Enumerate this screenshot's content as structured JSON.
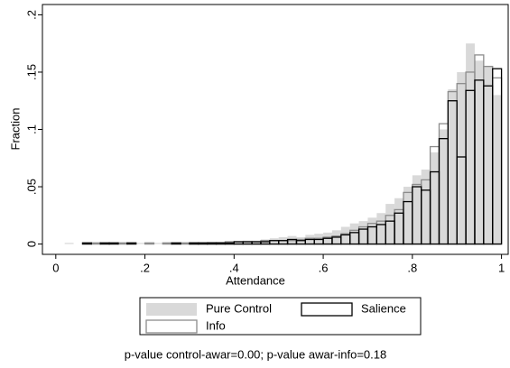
{
  "chart_data": {
    "type": "histogram",
    "x_label": "Attendance",
    "y_label": "Fraction",
    "note": "p-value control-awar=0.00; p-value awar-info=0.18",
    "bins": [
      0,
      0.02,
      0.04,
      0.06,
      0.08,
      0.1,
      0.12,
      0.14,
      0.16,
      0.18,
      0.2,
      0.22,
      0.24,
      0.26,
      0.28,
      0.3,
      0.32,
      0.34,
      0.36,
      0.38,
      0.4,
      0.42,
      0.44,
      0.46,
      0.48,
      0.5,
      0.52,
      0.54,
      0.56,
      0.58,
      0.6,
      0.62,
      0.64,
      0.66,
      0.68,
      0.7,
      0.72,
      0.74,
      0.76,
      0.78,
      0.8,
      0.82,
      0.84,
      0.86,
      0.88,
      0.9,
      0.92,
      0.94,
      0.96,
      0.98,
      1
    ],
    "series": [
      {
        "name": "Pure Control",
        "color": "#d9d9d9",
        "style": "filled",
        "values": [
          0,
          0.001,
          0,
          0.001,
          0.001,
          0,
          0.001,
          0.001,
          0,
          0.001,
          0.001,
          0.001,
          0,
          0.001,
          0.001,
          0.001,
          0.001,
          0.002,
          0.002,
          0.002,
          0.002,
          0.003,
          0.003,
          0.004,
          0.005,
          0.006,
          0.007,
          0.006,
          0.008,
          0.009,
          0.01,
          0.012,
          0.015,
          0.018,
          0.02,
          0.023,
          0.027,
          0.035,
          0.04,
          0.05,
          0.06,
          0.065,
          0.08,
          0.1,
          0.135,
          0.15,
          0.175,
          0.16,
          0.155,
          0.13
        ]
      },
      {
        "name": "Info",
        "color": "#8c8c8c",
        "style": "outline",
        "values": [
          0,
          0,
          0,
          0,
          0.001,
          0,
          0,
          0.001,
          0,
          0,
          0.001,
          0,
          0.001,
          0,
          0.001,
          0.001,
          0.001,
          0.001,
          0.001,
          0.002,
          0.002,
          0.002,
          0.002,
          0.003,
          0.003,
          0.003,
          0.003,
          0.004,
          0.005,
          0.005,
          0.006,
          0.007,
          0.009,
          0.012,
          0.015,
          0.018,
          0.02,
          0.025,
          0.03,
          0.045,
          0.052,
          0.056,
          0.085,
          0.105,
          0.133,
          0.14,
          0.15,
          0.165,
          0.155,
          0.145
        ]
      },
      {
        "name": "Salience",
        "color": "#000000",
        "style": "outline",
        "values": [
          0,
          0,
          0,
          0.001,
          0,
          0.001,
          0.001,
          0,
          0.001,
          0,
          0,
          0,
          0,
          0.001,
          0,
          0.001,
          0.001,
          0.001,
          0.001,
          0.001,
          0.002,
          0.002,
          0.002,
          0.002,
          0.003,
          0.003,
          0.004,
          0.003,
          0.004,
          0.004,
          0.005,
          0.006,
          0.008,
          0.01,
          0.013,
          0.015,
          0.017,
          0.02,
          0.027,
          0.037,
          0.05,
          0.047,
          0.063,
          0.092,
          0.125,
          0.076,
          0.134,
          0.143,
          0.138,
          0.153
        ]
      }
    ],
    "xlim": [
      -0.03,
      1.015
    ],
    "ylim": [
      -0.009,
      0.209
    ],
    "xticks": [
      0,
      {
        "value": 0.2,
        "label": ".2"
      },
      {
        "value": 0.4,
        "label": ".4"
      },
      {
        "value": 0.6,
        "label": ".6"
      },
      {
        "value": 0.8,
        "label": ".8"
      },
      1
    ],
    "yticks": [
      0,
      {
        "value": 0.05,
        "label": ".05"
      },
      {
        "value": 0.1,
        "label": ".1"
      },
      {
        "value": 0.15,
        "label": ".15"
      },
      {
        "value": 0.2,
        "label": ".2"
      }
    ]
  }
}
